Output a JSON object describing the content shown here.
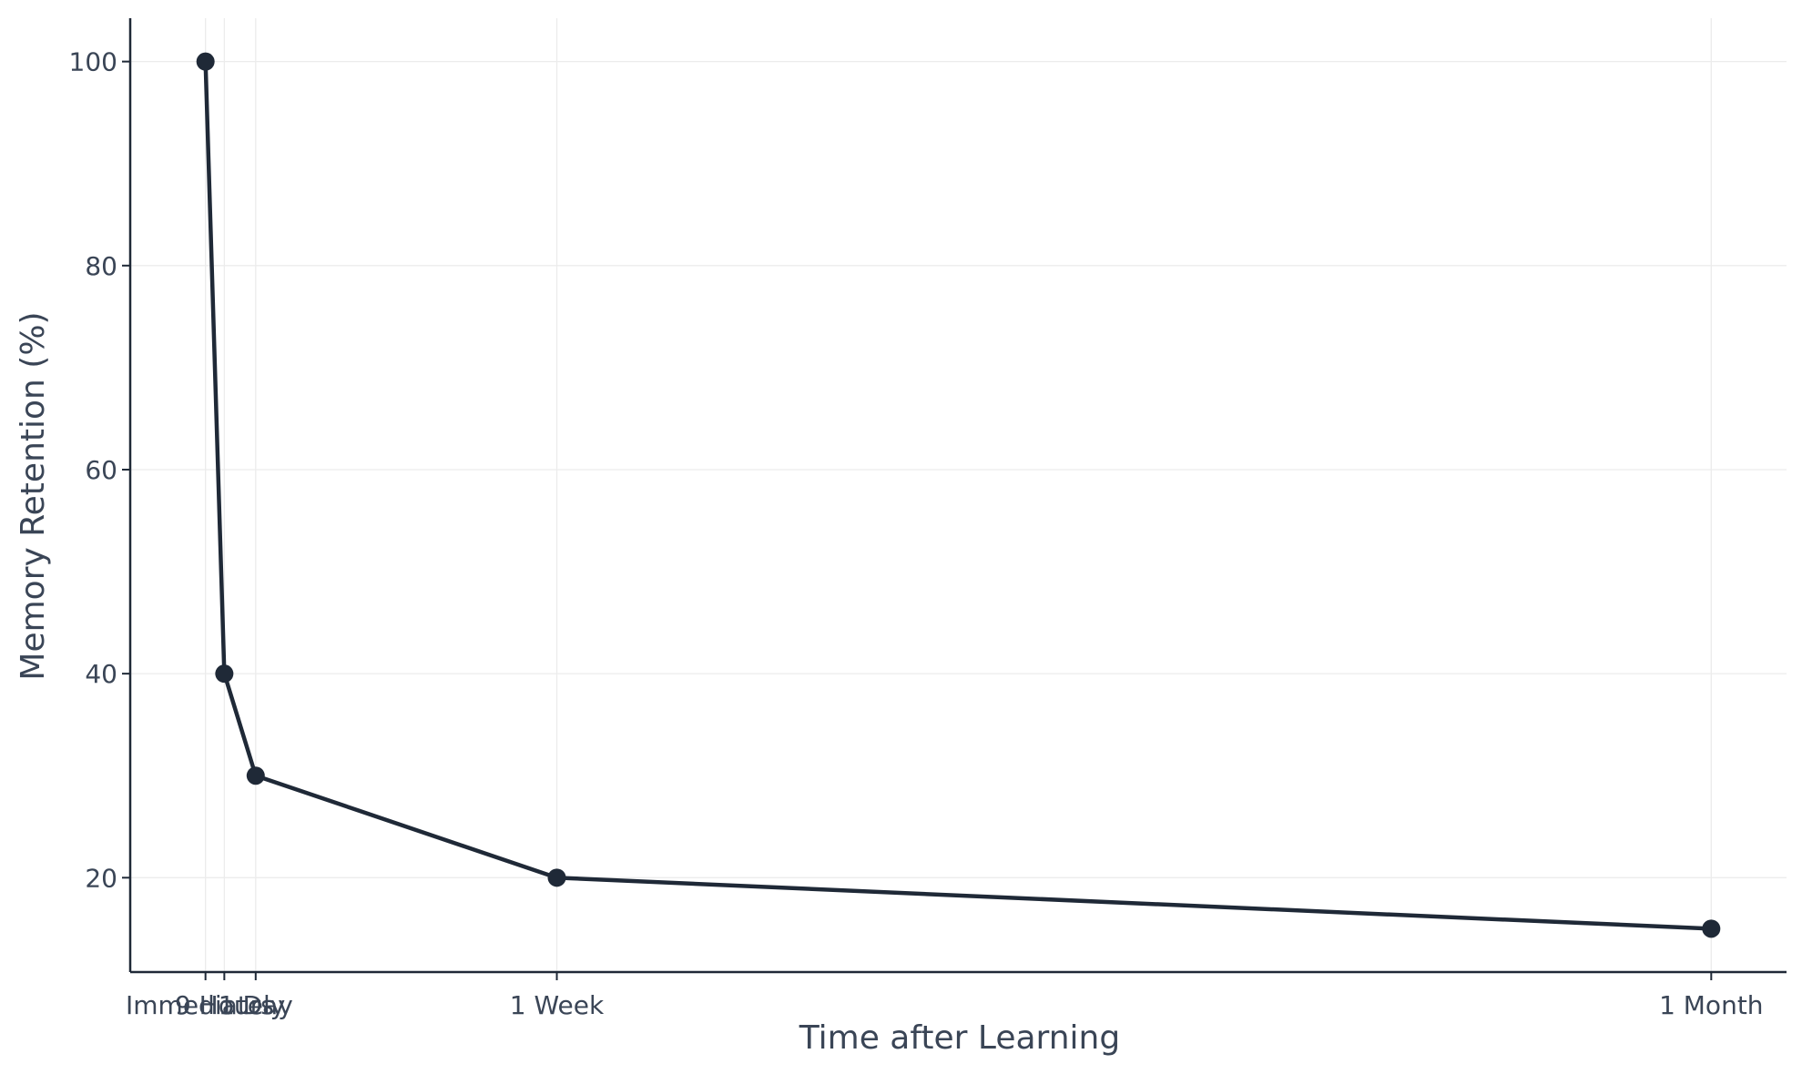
{
  "chart_data": {
    "type": "line",
    "title": "",
    "xlabel": "Time after Learning",
    "ylabel": "Memory Retention (%)",
    "x_unit": "hours",
    "x": [
      0,
      9,
      24,
      168,
      720
    ],
    "x_tick_labels": [
      "Immediately",
      "9 Hours",
      "1 Day",
      "1 Week",
      "1 Month"
    ],
    "series": [
      {
        "values": [
          100,
          40,
          30,
          20,
          15
        ]
      }
    ],
    "yticks": [
      20,
      40,
      60,
      80,
      100
    ],
    "ylim": [
      10.75,
      104.25
    ],
    "xlim": [
      -36,
      756
    ],
    "grid": true,
    "legend": "none",
    "colors": {
      "line": "#1f2937",
      "text": "#3a4556",
      "grid": "#ececec"
    }
  }
}
